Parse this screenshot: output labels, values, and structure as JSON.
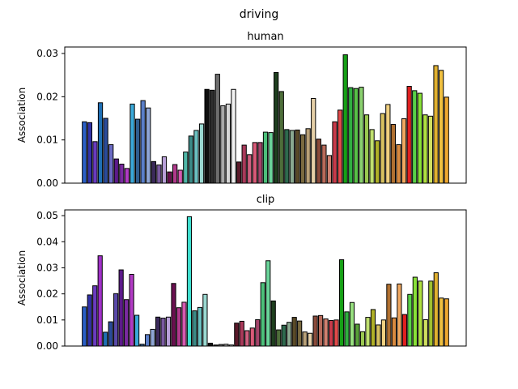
{
  "figure_title": "driving",
  "chart_data": [
    {
      "type": "bar",
      "title": "human",
      "xlabel": "",
      "ylabel": "Association",
      "ylim": [
        0,
        0.0315
      ],
      "yticks": [
        0.0,
        0.01,
        0.02,
        0.03
      ],
      "ytick_labels": [
        "0.00",
        "0.01",
        "0.02",
        "0.03"
      ],
      "grid": false,
      "bar_edge_color": "#000000",
      "values": [
        0.0142,
        0.014,
        0.0096,
        0.0186,
        0.015,
        0.0089,
        0.0056,
        0.0044,
        0.0034,
        0.0183,
        0.0148,
        0.0191,
        0.0174,
        0.005,
        0.0042,
        0.0061,
        0.0026,
        0.0043,
        0.003,
        0.0072,
        0.0109,
        0.0122,
        0.0137,
        0.0217,
        0.0215,
        0.0252,
        0.0179,
        0.0183,
        0.0217,
        0.0049,
        0.0088,
        0.0066,
        0.0094,
        0.0094,
        0.0118,
        0.0117,
        0.0256,
        0.0212,
        0.0124,
        0.0122,
        0.0123,
        0.0112,
        0.0126,
        0.0196,
        0.0102,
        0.0088,
        0.0064,
        0.0142,
        0.0169,
        0.0297,
        0.0221,
        0.0219,
        0.0222,
        0.0158,
        0.0124,
        0.0098,
        0.0161,
        0.0182,
        0.0136,
        0.0089,
        0.0149,
        0.0224,
        0.0214,
        0.0208,
        0.0158,
        0.0155,
        0.0272,
        0.0261,
        0.0199
      ],
      "colors": [
        "#2a5fc6",
        "#3232a8",
        "#6a3bbf",
        "#1f6fb5",
        "#2a4b9a",
        "#6b6bc4",
        "#5c1a8a",
        "#7a2aa0",
        "#b13bc4",
        "#3aa8d8",
        "#2f5e8f",
        "#5a7ec9",
        "#8fa6d6",
        "#3b2a5a",
        "#7a5aa0",
        "#b8a0d8",
        "#6b1050",
        "#b03a8c",
        "#d65ab0",
        "#4fb8a8",
        "#3c8a86",
        "#6bc0c0",
        "#9ad8d0",
        "#0f0f0f",
        "#2e2e2e",
        "#6e6e6e",
        "#a8a8a8",
        "#d6d6d6",
        "#f2f2f2",
        "#5a1a2a",
        "#a83a5a",
        "#d06080",
        "#d85a78",
        "#a4446a",
        "#4cc07a",
        "#6ad49a",
        "#1f3f1f",
        "#4e6e3a",
        "#2e6a4e",
        "#8aa890",
        "#5a4a28",
        "#7a6a40",
        "#b8a078",
        "#e6d0a8",
        "#8a4a3a",
        "#b86a5a",
        "#d08070",
        "#c83a4a",
        "#e04a4a",
        "#16a016",
        "#30b040",
        "#58c048",
        "#8ad070",
        "#9ac850",
        "#c0e070",
        "#b0b028",
        "#d6c060",
        "#f0d080",
        "#b07030",
        "#d88a40",
        "#f0a860",
        "#e02020",
        "#58d048",
        "#88e038",
        "#b0e040",
        "#d0e060",
        "#e0b030",
        "#f0c040",
        "#f0a830"
      ]
    },
    {
      "type": "bar",
      "title": "clip",
      "xlabel": "",
      "ylabel": "Association",
      "ylim": [
        0,
        0.0522
      ],
      "yticks": [
        0.0,
        0.01,
        0.02,
        0.03,
        0.04,
        0.05
      ],
      "ytick_labels": [
        "0.00",
        "0.01",
        "0.02",
        "0.03",
        "0.04",
        "0.05"
      ],
      "grid": false,
      "bar_edge_color": "#000000",
      "values": [
        0.015,
        0.0196,
        0.0231,
        0.0346,
        0.0053,
        0.0093,
        0.0201,
        0.0292,
        0.0178,
        0.0275,
        0.0118,
        0.0007,
        0.0044,
        0.0064,
        0.0111,
        0.0107,
        0.0111,
        0.024,
        0.0147,
        0.0168,
        0.0496,
        0.0135,
        0.0148,
        0.0198,
        0.0011,
        0.0004,
        0.0006,
        0.0007,
        0.0004,
        0.0088,
        0.0095,
        0.0059,
        0.0069,
        0.0101,
        0.0243,
        0.0327,
        0.0173,
        0.0062,
        0.008,
        0.0091,
        0.011,
        0.0096,
        0.0054,
        0.0049,
        0.0115,
        0.0117,
        0.0104,
        0.0098,
        0.01,
        0.0331,
        0.0131,
        0.0167,
        0.0084,
        0.0055,
        0.011,
        0.014,
        0.0081,
        0.01,
        0.0237,
        0.0108,
        0.0238,
        0.0121,
        0.0198,
        0.0264,
        0.0249,
        0.0101,
        0.0249,
        0.0281,
        0.0184,
        0.0181
      ],
      "colors": [
        "#2a5fc6",
        "#3232a8",
        "#6a3bbf",
        "#a030c8",
        "#1f6fb5",
        "#2a4b9a",
        "#5a4aa8",
        "#5c1a8a",
        "#7a2aa0",
        "#b13bc4",
        "#3aa8d8",
        "#2f5e8f",
        "#5a7ec9",
        "#8fa6d6",
        "#3b2a5a",
        "#7a5aa0",
        "#b8a0d8",
        "#6b1050",
        "#b03a8c",
        "#d65ab0",
        "#40e0d0",
        "#3c8a86",
        "#6bc0c0",
        "#9ad8d0",
        "#0f0f0f",
        "#2e2e2e",
        "#6e6e6e",
        "#a8a8a8",
        "#f2f2f2",
        "#5a1a2a",
        "#a83a5a",
        "#d06080",
        "#d85a78",
        "#a4446a",
        "#4cc07a",
        "#6ad49a",
        "#1f3f1f",
        "#4e6e3a",
        "#2e6a4e",
        "#8aa890",
        "#5a4a28",
        "#7a6a40",
        "#b8a078",
        "#e6d0a8",
        "#8a4a3a",
        "#b86a5a",
        "#d08070",
        "#c83a4a",
        "#e04a4a",
        "#16a016",
        "#30b040",
        "#98e080",
        "#58a038",
        "#9ac850",
        "#c0e070",
        "#b0b028",
        "#d6c060",
        "#f0d080",
        "#b07030",
        "#d88a40",
        "#f0a860",
        "#e02020",
        "#58d048",
        "#88e038",
        "#b0e040",
        "#d0e060",
        "#a0c030",
        "#e0b030",
        "#f0c040",
        "#f0a830"
      ]
    }
  ]
}
